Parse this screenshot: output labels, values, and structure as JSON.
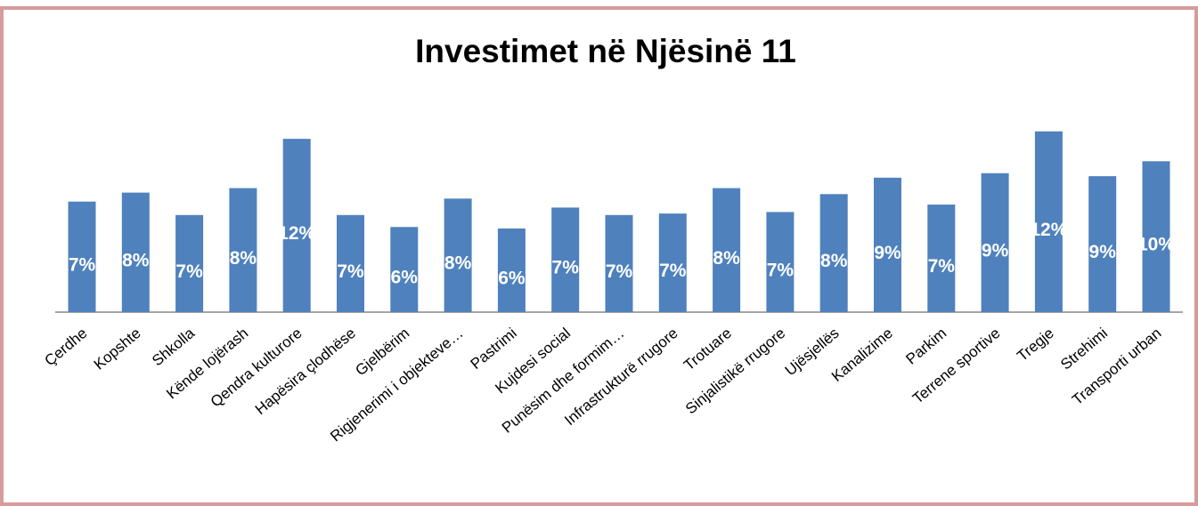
{
  "chart_data": {
    "type": "bar",
    "title": "Investimet në Njësinë 11",
    "categories": [
      "Çerdhe",
      "Kopshte",
      "Shkolla",
      "Kënde lojërash",
      "Qendra kulturore",
      "Hapësira çlodhëse",
      "Gjelbërim",
      "Rigjenerimi i objekteve…",
      "Pastrimi",
      "Kujdesi social",
      "Punësim dhe formim…",
      "Infrastrukturë rrugore",
      "Trotuare",
      "Sinjalistikë rrugore",
      "Ujësjellës",
      "Kanalizime",
      "Parkim",
      "Terrene sportive",
      "Tregje",
      "Strehimi",
      "Transporti urban"
    ],
    "values": [
      7.4,
      8.0,
      6.5,
      8.3,
      11.6,
      6.5,
      5.7,
      7.6,
      5.6,
      7.0,
      6.5,
      6.6,
      8.3,
      6.7,
      7.9,
      9.0,
      7.2,
      9.3,
      12.1,
      9.1,
      10.1
    ],
    "value_labels": [
      "7%",
      "8%",
      "7%",
      "8%",
      "12%",
      "7%",
      "6%",
      "8%",
      "6%",
      "7%",
      "7%",
      "7%",
      "8%",
      "7%",
      "8%",
      "9%",
      "7%",
      "9%",
      "12%",
      "9%",
      "10%"
    ],
    "color": "#4f81bd"
  }
}
